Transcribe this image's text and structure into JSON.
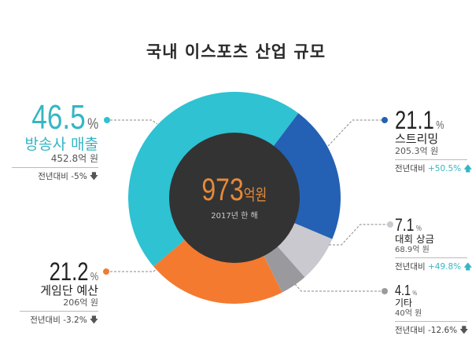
{
  "title": "국내 이스포츠 산업 규모",
  "center": {
    "value": "973",
    "unit": "억원",
    "caption": "2017년 한 해"
  },
  "chart_data": {
    "type": "pie",
    "donut": true,
    "title": "국내 이스포츠 산업 규모",
    "total": "973억원",
    "slices": [
      {
        "name": "스트리밍",
        "percent": 21.1,
        "amount": "205.3억 원",
        "yoy": "+50.5%",
        "trend": "up",
        "color": "#2461b4"
      },
      {
        "name": "대회 상금",
        "percent": 7.1,
        "amount": "68.9억 원",
        "yoy": "+49.8%",
        "trend": "up",
        "color": "#c9c9cf"
      },
      {
        "name": "기타",
        "percent": 4.1,
        "amount": "40억 원",
        "yoy": "-12.6%",
        "trend": "down",
        "color": "#9a9a9e"
      },
      {
        "name": "게임단 예산",
        "percent": 21.2,
        "amount": "206억 원",
        "yoy": "-3.2%",
        "trend": "down",
        "color": "#f47a30"
      },
      {
        "name": "방송사 매출",
        "percent": 46.5,
        "amount": "452.8억 원",
        "yoy": "-5%",
        "trend": "down",
        "color": "#2ec2d2"
      }
    ],
    "center_color": "#333333"
  },
  "labels": {
    "pct_unit": "%",
    "yoy_prefix": "전년대비",
    "arrow_up": "🡅",
    "arrow_down": "🡇"
  }
}
